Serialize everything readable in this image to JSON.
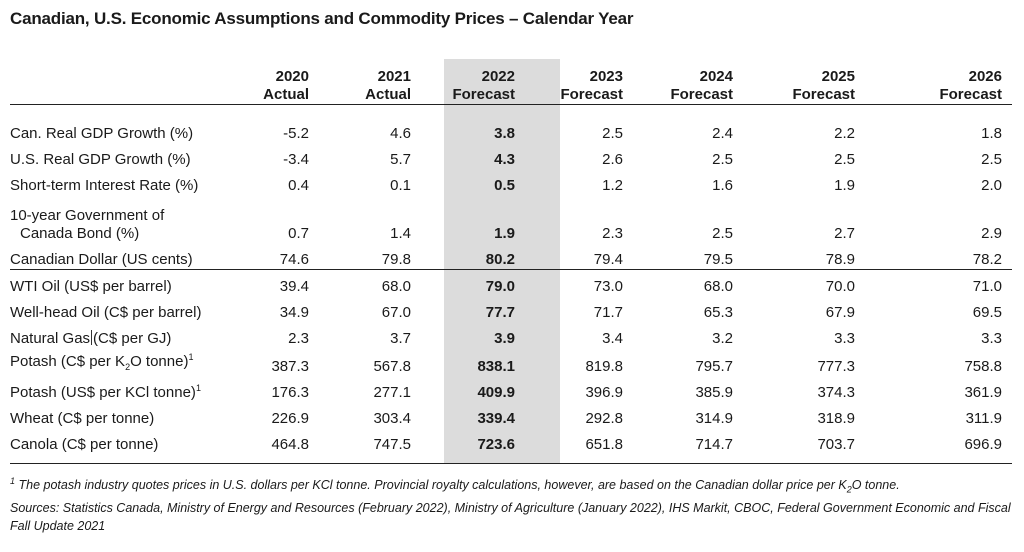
{
  "title": "Canadian, U.S. Economic Assumptions and Commodity Prices – Calendar Year",
  "columns": [
    {
      "year": "2020",
      "kind": "Actual"
    },
    {
      "year": "2021",
      "kind": "Actual"
    },
    {
      "year": "2022",
      "kind": "Forecast"
    },
    {
      "year": "2023",
      "kind": "Forecast"
    },
    {
      "year": "2024",
      "kind": "Forecast"
    },
    {
      "year": "2025",
      "kind": "Forecast"
    },
    {
      "year": "2026",
      "kind": "Forecast"
    }
  ],
  "rows": [
    {
      "label": "Can. Real GDP Growth (%)",
      "values": [
        "-5.2",
        "4.6",
        "3.8",
        "2.5",
        "2.4",
        "2.2",
        "1.8"
      ]
    },
    {
      "label": "U.S. Real GDP Growth (%)",
      "values": [
        "-3.4",
        "5.7",
        "4.3",
        "2.6",
        "2.5",
        "2.5",
        "2.5"
      ]
    },
    {
      "label": "Short-term Interest Rate (%)",
      "values": [
        "0.4",
        "0.1",
        "0.5",
        "1.2",
        "1.6",
        "1.9",
        "2.0"
      ]
    },
    {
      "label_line1": "10-year Government of",
      "label_line2": "Canada Bond (%)",
      "values": [
        "0.7",
        "1.4",
        "1.9",
        "2.3",
        "2.5",
        "2.7",
        "2.9"
      ]
    },
    {
      "label": "Canadian Dollar (US cents)",
      "values": [
        "74.6",
        "79.8",
        "80.2",
        "79.4",
        "79.5",
        "78.9",
        "78.2"
      ]
    },
    {
      "label": "WTI Oil (US$ per barrel)",
      "values": [
        "39.4",
        "68.0",
        "79.0",
        "73.0",
        "68.0",
        "70.0",
        "71.0"
      ]
    },
    {
      "label": "Well-head Oil (C$ per barrel)",
      "values": [
        "34.9",
        "67.0",
        "77.7",
        "71.7",
        "65.3",
        "67.9",
        "69.5"
      ]
    },
    {
      "label_a": "Natural Gas",
      "label_b": "(C$ per GJ)",
      "values": [
        "2.3",
        "3.7",
        "3.9",
        "3.4",
        "3.2",
        "3.3",
        "3.3"
      ]
    },
    {
      "label_a": "Potash (C$ per K",
      "label_sub": "2",
      "label_b": "O tonne)",
      "label_sup": "1",
      "values": [
        "387.3",
        "567.8",
        "838.1",
        "819.8",
        "795.7",
        "777.3",
        "758.8"
      ]
    },
    {
      "label_a": "Potash (US$ per KCl tonne)",
      "label_sup": "1",
      "values": [
        "176.3",
        "277.1",
        "409.9",
        "396.9",
        "385.9",
        "374.3",
        "361.9"
      ]
    },
    {
      "label": "Wheat (C$ per tonne)",
      "values": [
        "226.9",
        "303.4",
        "339.4",
        "292.8",
        "314.9",
        "318.9",
        "311.9"
      ]
    },
    {
      "label": "Canola (C$ per tonne)",
      "values": [
        "464.8",
        "747.5",
        "723.6",
        "651.8",
        "714.7",
        "703.7",
        "696.9"
      ]
    }
  ],
  "footnote": {
    "marker": "1",
    "text_a": " The potash industry quotes prices in U.S. dollars per KCl tonne. Provincial royalty calculations, however, are based on the Canadian dollar price per K",
    "text_sub": "2",
    "text_b": "O tonne.",
    "sources": "Sources: Statistics Canada, Ministry of Energy and Resources (February 2022), Ministry of Agriculture (January 2022), IHS Markit, CBOC, Federal Government Economic and Fiscal Fall Update 2021"
  },
  "colors": {
    "highlight": "#dcdcdc",
    "text": "#1a1a1a",
    "rule": "#222222"
  }
}
